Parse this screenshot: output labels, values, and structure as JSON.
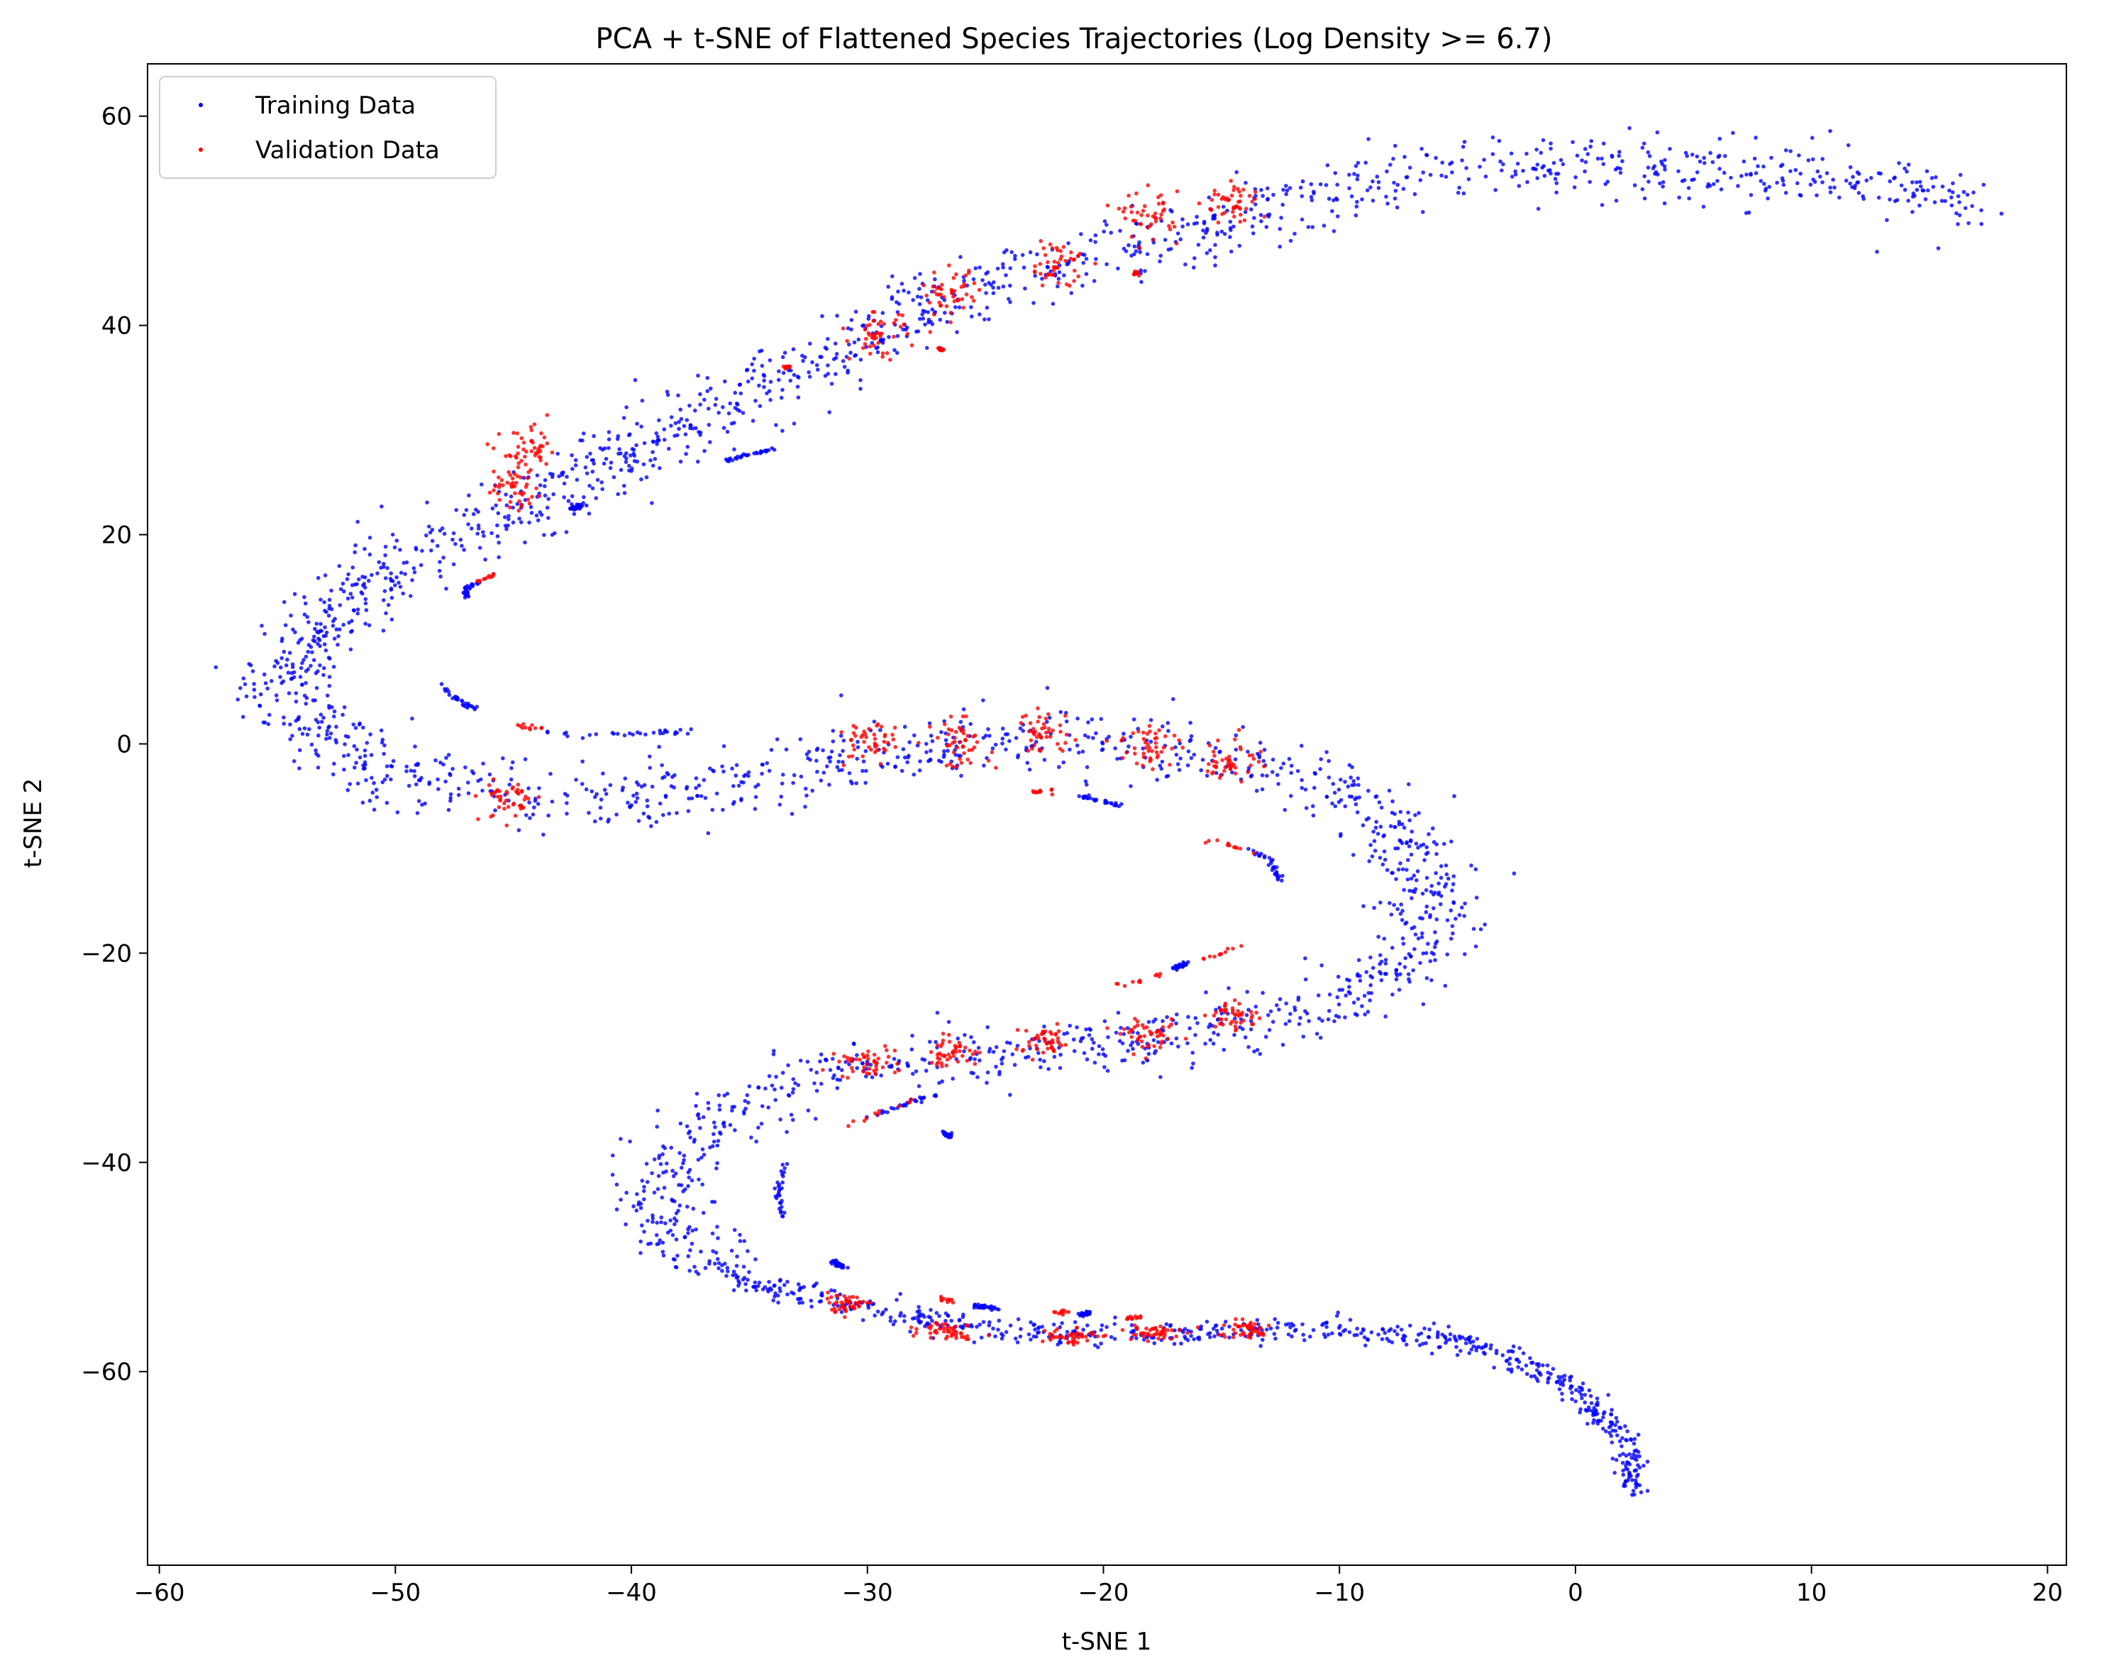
{
  "chart_data": {
    "type": "scatter",
    "title": "PCA + t-SNE of Flattened Species Trajectories (Log Density >= 6.7)",
    "xlabel": "t-SNE 1",
    "ylabel": "t-SNE 2",
    "xlim": [
      -60.5,
      20.8
    ],
    "ylim": [
      -78.5,
      65
    ],
    "xticks": [
      -60,
      -50,
      -40,
      -30,
      -20,
      -10,
      0,
      10,
      20
    ],
    "yticks": [
      -60,
      -40,
      -20,
      0,
      20,
      40,
      60
    ],
    "xtick_labels": [
      "−60",
      "−50",
      "−40",
      "−30",
      "−20",
      "−10",
      "0",
      "10",
      "20"
    ],
    "ytick_labels": [
      "−60",
      "−40",
      "−20",
      "0",
      "20",
      "40",
      "60"
    ],
    "grid": false,
    "legend_position": "top-left",
    "series": [
      {
        "name": "Training Data",
        "color": "#0000ff",
        "main_path": [
          [
            17,
            51
          ],
          [
            12,
            54
          ],
          [
            6,
            54.5
          ],
          [
            0,
            55.5
          ],
          [
            -5,
            55
          ],
          [
            -10,
            53
          ],
          [
            -15,
            50
          ],
          [
            -20,
            47
          ],
          [
            -25,
            44
          ],
          [
            -30,
            39
          ],
          [
            -35,
            33
          ],
          [
            -40,
            28
          ],
          [
            -45,
            22
          ],
          [
            -50,
            17
          ],
          [
            -53,
            12
          ],
          [
            -55,
            6
          ],
          [
            -53,
            1
          ],
          [
            -50,
            -3
          ],
          [
            -45,
            -5
          ],
          [
            -40,
            -5
          ],
          [
            -35,
            -3.5
          ],
          [
            -30,
            -1
          ],
          [
            -25,
            0
          ],
          [
            -20,
            0
          ],
          [
            -15,
            -1.5
          ],
          [
            -11,
            -3
          ],
          [
            -8,
            -7
          ],
          [
            -6,
            -13
          ],
          [
            -6.5,
            -20
          ],
          [
            -10,
            -25
          ],
          [
            -15,
            -27
          ],
          [
            -20,
            -28.5
          ],
          [
            -25,
            -29.5
          ],
          [
            -30,
            -30.5
          ],
          [
            -35,
            -34
          ],
          [
            -38,
            -39
          ],
          [
            -39,
            -44
          ],
          [
            -38,
            -48
          ],
          [
            -35,
            -51.5
          ],
          [
            -30,
            -54
          ],
          [
            -25,
            -56
          ],
          [
            -20,
            -56.5
          ],
          [
            -15,
            -56.2
          ],
          [
            -10,
            -56
          ],
          [
            -5,
            -57
          ],
          [
            -2,
            -59
          ],
          [
            0,
            -62
          ],
          [
            2,
            -66
          ],
          [
            2.6,
            -70
          ],
          [
            2.4,
            -71.5
          ]
        ],
        "spread": 1.6,
        "n_points": 3200,
        "short_arcs": [
          [
            [
              -37.5,
              1.2
            ],
            [
              -40,
              1
            ],
            [
              -42,
              0.8
            ],
            [
              -44,
              1.3
            ]
          ],
          [
            [
              -48,
              5.5
            ],
            [
              -47.5,
              4.5
            ],
            [
              -47,
              3.8
            ],
            [
              -46.5,
              3.3
            ]
          ],
          [
            [
              -47,
              14
            ],
            [
              -47,
              14.8
            ],
            [
              -46.5,
              15.4
            ]
          ],
          [
            [
              -42.5,
              22.5
            ],
            [
              -42.2,
              22.8
            ]
          ],
          [
            [
              -36,
              27
            ],
            [
              -35,
              27.6
            ],
            [
              -34,
              28.2
            ]
          ],
          [
            [
              -19,
              -6
            ],
            [
              -20,
              -5.5
            ],
            [
              -21,
              -5
            ]
          ],
          [
            [
              -12.5,
              -13
            ],
            [
              -13,
              -11
            ],
            [
              -14,
              -10
            ]
          ],
          [
            [
              -16.5,
              -21
            ],
            [
              -17,
              -21.5
            ]
          ],
          [
            [
              -27,
              -33.5
            ],
            [
              -28.5,
              -34.5
            ],
            [
              -30,
              -35.7
            ]
          ],
          [
            [
              -33.5,
              -45.5
            ],
            [
              -33.8,
              -43
            ],
            [
              -33.6,
              -41
            ],
            [
              -33.3,
              -40
            ]
          ],
          [
            [
              -31.5,
              -49.5
            ],
            [
              -31,
              -50
            ]
          ],
          [
            [
              -24.5,
              -54
            ],
            [
              -25.5,
              -53.7
            ]
          ],
          [
            [
              -21,
              -54.5
            ],
            [
              -20.5,
              -54.4
            ]
          ],
          [
            [
              -26.5,
              -37.5
            ],
            [
              -26.8,
              -37.2
            ]
          ]
        ],
        "arc_points": 420
      },
      {
        "name": "Validation Data",
        "color": "#ff0000",
        "clusters": [
          [
            -14.5,
            51.5
          ],
          [
            -18,
            50.5
          ],
          [
            -22,
            46
          ],
          [
            -26.5,
            43
          ],
          [
            -29.5,
            39
          ],
          [
            -45,
            24.5
          ],
          [
            -44.3,
            27.8
          ],
          [
            -45.2,
            -5.3
          ],
          [
            -30,
            0
          ],
          [
            -26,
            0
          ],
          [
            -22.5,
            1
          ],
          [
            -18,
            0
          ],
          [
            -14.5,
            -1.5
          ],
          [
            -14.5,
            -26
          ],
          [
            -18,
            -28
          ],
          [
            -22.5,
            -28.5
          ],
          [
            -26.5,
            -29.5
          ],
          [
            -30,
            -30.5
          ],
          [
            -31,
            -53.5
          ],
          [
            -26.5,
            -56
          ],
          [
            -21.5,
            -56.5
          ],
          [
            -18,
            -56.3
          ],
          [
            -14,
            -56
          ]
        ],
        "cluster_spread": [
          1.1,
          1.1
        ],
        "points_per_cluster": 45,
        "short_arcs": [
          [
            [
              -45.5,
              16.5
            ],
            [
              -46.5,
              15.5
            ]
          ],
          [
            [
              -44,
              1.6
            ],
            [
              -45,
              1.8
            ],
            [
              -43.5,
              1.4
            ]
          ],
          [
            [
              -22,
              -4.6
            ],
            [
              -23,
              -4.5
            ]
          ],
          [
            [
              -13.5,
              -10.5
            ],
            [
              -15,
              -9.5
            ],
            [
              -16,
              -9
            ]
          ],
          [
            [
              -14,
              -19
            ],
            [
              -15,
              -20
            ],
            [
              -16,
              -20.7
            ]
          ],
          [
            [
              -17.5,
              -22
            ],
            [
              -18.5,
              -22.7
            ],
            [
              -19.5,
              -23.1
            ]
          ],
          [
            [
              -28,
              -34
            ],
            [
              -29.5,
              -35.2
            ],
            [
              -31,
              -36.5
            ]
          ],
          [
            [
              -27,
              -53
            ],
            [
              -26.5,
              -53.3
            ]
          ],
          [
            [
              -22,
              -54.3
            ],
            [
              -21.5,
              -54.4
            ]
          ],
          [
            [
              -18.5,
              -54.8
            ],
            [
              -19,
              -54.9
            ]
          ],
          [
            [
              -27,
              37.8
            ],
            [
              -26.8,
              37.7
            ]
          ],
          [
            [
              -18.5,
              45
            ],
            [
              -18.7,
              44.9
            ]
          ],
          [
            [
              -33.5,
              36
            ],
            [
              -33.2,
              36.2
            ]
          ]
        ],
        "arc_points": 140
      }
    ]
  }
}
